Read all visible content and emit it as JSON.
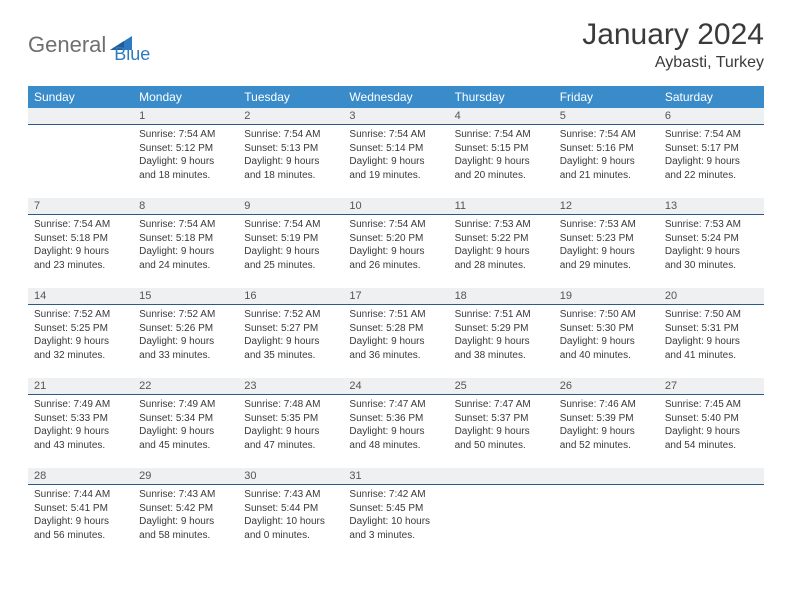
{
  "brand": {
    "part1": "General",
    "part2": "Blue"
  },
  "title": "January 2024",
  "location": "Aybasti, Turkey",
  "colors": {
    "header_bg": "#3a8bc9",
    "header_text": "#ffffff",
    "daybar_bg": "#eef0f2",
    "daybar_border": "#2a5a8a",
    "body_text": "#3a3a3a",
    "logo_gray": "#6f6f6f",
    "logo_blue": "#2e7ac0"
  },
  "weekdays": [
    "Sunday",
    "Monday",
    "Tuesday",
    "Wednesday",
    "Thursday",
    "Friday",
    "Saturday"
  ],
  "weeks": [
    [
      null,
      {
        "n": "1",
        "sr": "7:54 AM",
        "ss": "5:12 PM",
        "dl": "9 hours and 18 minutes."
      },
      {
        "n": "2",
        "sr": "7:54 AM",
        "ss": "5:13 PM",
        "dl": "9 hours and 18 minutes."
      },
      {
        "n": "3",
        "sr": "7:54 AM",
        "ss": "5:14 PM",
        "dl": "9 hours and 19 minutes."
      },
      {
        "n": "4",
        "sr": "7:54 AM",
        "ss": "5:15 PM",
        "dl": "9 hours and 20 minutes."
      },
      {
        "n": "5",
        "sr": "7:54 AM",
        "ss": "5:16 PM",
        "dl": "9 hours and 21 minutes."
      },
      {
        "n": "6",
        "sr": "7:54 AM",
        "ss": "5:17 PM",
        "dl": "9 hours and 22 minutes."
      }
    ],
    [
      {
        "n": "7",
        "sr": "7:54 AM",
        "ss": "5:18 PM",
        "dl": "9 hours and 23 minutes."
      },
      {
        "n": "8",
        "sr": "7:54 AM",
        "ss": "5:18 PM",
        "dl": "9 hours and 24 minutes."
      },
      {
        "n": "9",
        "sr": "7:54 AM",
        "ss": "5:19 PM",
        "dl": "9 hours and 25 minutes."
      },
      {
        "n": "10",
        "sr": "7:54 AM",
        "ss": "5:20 PM",
        "dl": "9 hours and 26 minutes."
      },
      {
        "n": "11",
        "sr": "7:53 AM",
        "ss": "5:22 PM",
        "dl": "9 hours and 28 minutes."
      },
      {
        "n": "12",
        "sr": "7:53 AM",
        "ss": "5:23 PM",
        "dl": "9 hours and 29 minutes."
      },
      {
        "n": "13",
        "sr": "7:53 AM",
        "ss": "5:24 PM",
        "dl": "9 hours and 30 minutes."
      }
    ],
    [
      {
        "n": "14",
        "sr": "7:52 AM",
        "ss": "5:25 PM",
        "dl": "9 hours and 32 minutes."
      },
      {
        "n": "15",
        "sr": "7:52 AM",
        "ss": "5:26 PM",
        "dl": "9 hours and 33 minutes."
      },
      {
        "n": "16",
        "sr": "7:52 AM",
        "ss": "5:27 PM",
        "dl": "9 hours and 35 minutes."
      },
      {
        "n": "17",
        "sr": "7:51 AM",
        "ss": "5:28 PM",
        "dl": "9 hours and 36 minutes."
      },
      {
        "n": "18",
        "sr": "7:51 AM",
        "ss": "5:29 PM",
        "dl": "9 hours and 38 minutes."
      },
      {
        "n": "19",
        "sr": "7:50 AM",
        "ss": "5:30 PM",
        "dl": "9 hours and 40 minutes."
      },
      {
        "n": "20",
        "sr": "7:50 AM",
        "ss": "5:31 PM",
        "dl": "9 hours and 41 minutes."
      }
    ],
    [
      {
        "n": "21",
        "sr": "7:49 AM",
        "ss": "5:33 PM",
        "dl": "9 hours and 43 minutes."
      },
      {
        "n": "22",
        "sr": "7:49 AM",
        "ss": "5:34 PM",
        "dl": "9 hours and 45 minutes."
      },
      {
        "n": "23",
        "sr": "7:48 AM",
        "ss": "5:35 PM",
        "dl": "9 hours and 47 minutes."
      },
      {
        "n": "24",
        "sr": "7:47 AM",
        "ss": "5:36 PM",
        "dl": "9 hours and 48 minutes."
      },
      {
        "n": "25",
        "sr": "7:47 AM",
        "ss": "5:37 PM",
        "dl": "9 hours and 50 minutes."
      },
      {
        "n": "26",
        "sr": "7:46 AM",
        "ss": "5:39 PM",
        "dl": "9 hours and 52 minutes."
      },
      {
        "n": "27",
        "sr": "7:45 AM",
        "ss": "5:40 PM",
        "dl": "9 hours and 54 minutes."
      }
    ],
    [
      {
        "n": "28",
        "sr": "7:44 AM",
        "ss": "5:41 PM",
        "dl": "9 hours and 56 minutes."
      },
      {
        "n": "29",
        "sr": "7:43 AM",
        "ss": "5:42 PM",
        "dl": "9 hours and 58 minutes."
      },
      {
        "n": "30",
        "sr": "7:43 AM",
        "ss": "5:44 PM",
        "dl": "10 hours and 0 minutes."
      },
      {
        "n": "31",
        "sr": "7:42 AM",
        "ss": "5:45 PM",
        "dl": "10 hours and 3 minutes."
      },
      null,
      null,
      null
    ]
  ],
  "labels": {
    "sunrise": "Sunrise:",
    "sunset": "Sunset:",
    "daylight": "Daylight:"
  }
}
